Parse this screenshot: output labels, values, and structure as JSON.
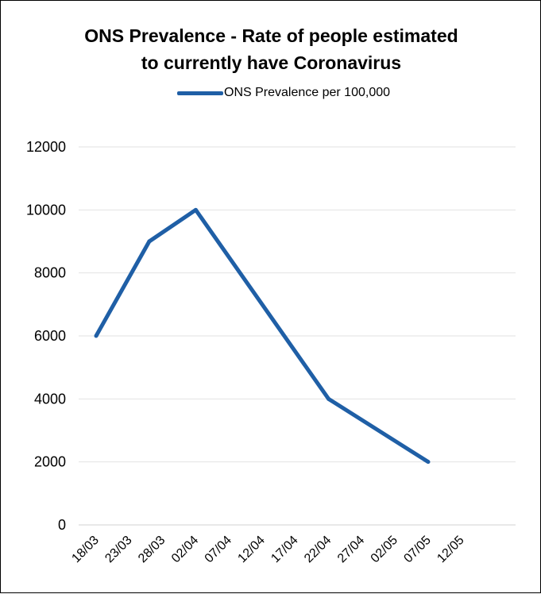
{
  "chart_data": {
    "type": "line",
    "title": "ONS Prevalence - Rate of people estimated to currently have Coronavirus",
    "title_lines": [
      "ONS Prevalence - Rate of people estimated",
      "to currently have Coronavirus"
    ],
    "legend_position": "top",
    "grid": true,
    "x_ticks": [
      "18/03",
      "23/03",
      "28/03",
      "02/04",
      "07/04",
      "12/04",
      "17/04",
      "22/04",
      "27/04",
      "02/05",
      "07/05",
      "12/05"
    ],
    "y_ticks": [
      "0",
      "2000",
      "4000",
      "6000",
      "8000",
      "10000",
      "12000"
    ],
    "ylim": [
      0,
      12000
    ],
    "series": [
      {
        "name": "ONS Prevalence per 100,000",
        "color": "#1f5fa6",
        "x": [
          "18/03",
          "26/03",
          "02/04",
          "22/04",
          "07/05"
        ],
        "y": [
          6000,
          9000,
          10000,
          4000,
          2000
        ]
      }
    ]
  }
}
